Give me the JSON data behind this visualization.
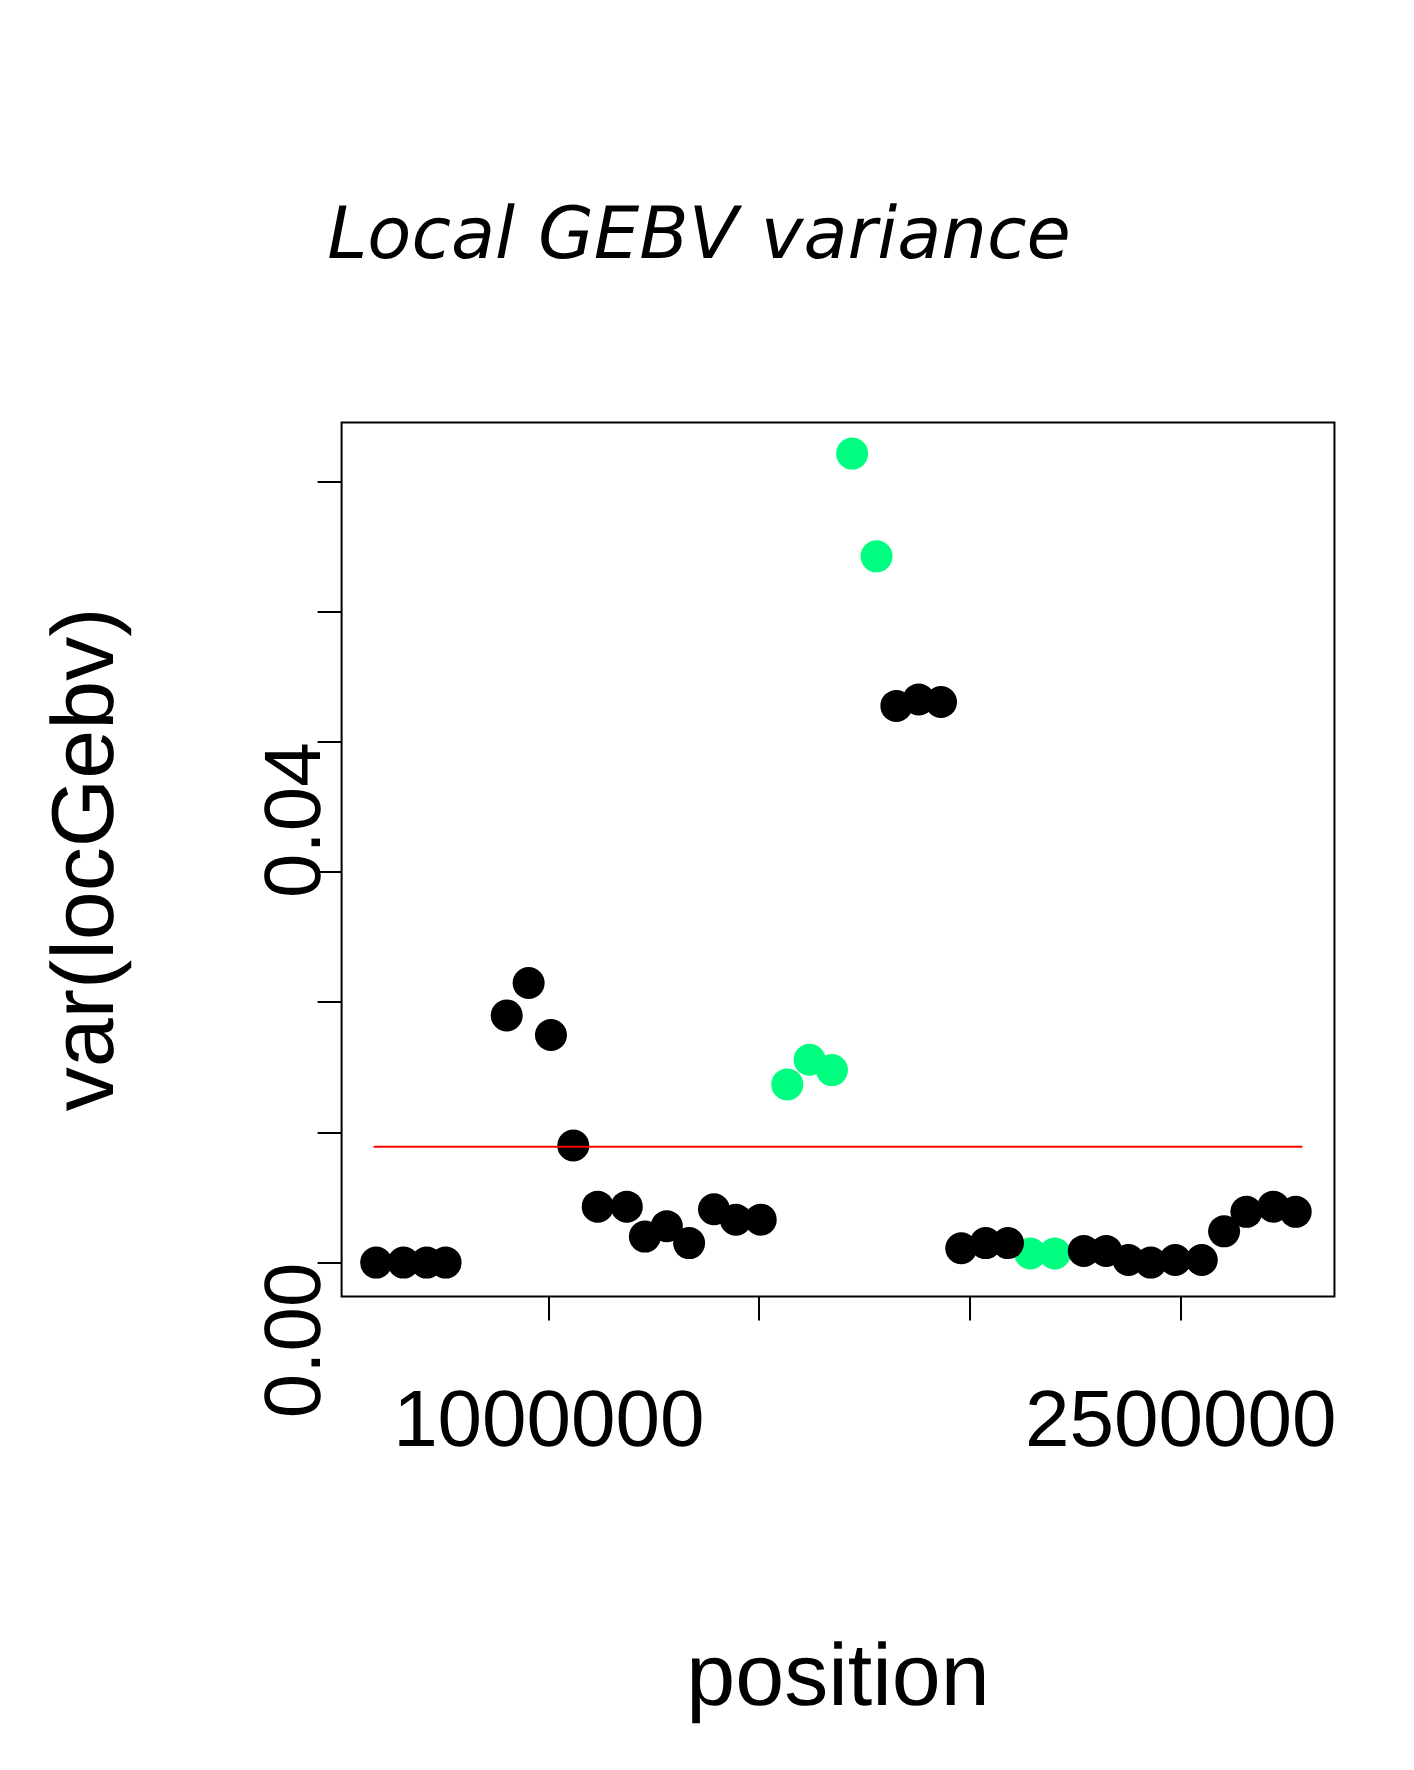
{
  "chart_data": {
    "type": "scatter",
    "title": "Local GEBV variance",
    "xlabel": "position",
    "ylabel": "var(locGebv)",
    "series": [
      {
        "color": "#000000",
        "x": [
          590000,
          655000,
          710000,
          755000,
          900000,
          952000,
          1005000,
          1058000,
          1116000,
          1185000,
          1228000,
          1280000,
          1333000,
          1392000,
          1444000,
          1503000,
          1825000,
          1878000,
          1931000,
          1979000,
          2037000,
          2090000,
          2270000,
          2323000,
          2376000,
          2429000,
          2487000,
          2550000,
          2603000,
          2656000,
          2720000,
          2773000
        ],
        "values": [
          0,
          0,
          0,
          0,
          0.019,
          0.0215,
          0.0175,
          0.009,
          0.0043,
          0.0043,
          0.002,
          0.0028,
          0.0015,
          0.0041,
          0.0033,
          0.0033,
          0.0428,
          0.0433,
          0.0431,
          0.0011,
          0.0015,
          0.0015,
          0.0009,
          0.0009,
          0.0002,
          0,
          0.0002,
          0.0002,
          0.0024,
          0.0039,
          0.0043,
          0.0039
        ]
      },
      {
        "color": "#00ff80",
        "x": [
          1566000,
          1619000,
          1672000,
          1720000,
          1778000,
          2143000,
          2201000
        ],
        "values": [
          0.0137,
          0.0156,
          0.0148,
          0.0622,
          0.0543,
          0.0007,
          0.0007
        ]
      }
    ],
    "xlim": [
      508000,
      2865000
    ],
    "ylim": [
      -0.0026,
      0.0646
    ],
    "xticks": [
      {
        "value": 1000000,
        "label": "1000000"
      },
      {
        "value": 1500000,
        "label": null
      },
      {
        "value": 2000000,
        "label": null
      },
      {
        "value": 2500000,
        "label": "2500000"
      }
    ],
    "yticks": [
      {
        "value": 0,
        "label": "0.00"
      },
      {
        "value": 0.01,
        "label": null
      },
      {
        "value": 0.02,
        "label": null
      },
      {
        "value": 0.03,
        "label": null
      },
      {
        "value": 0.04,
        "label": "0.04"
      },
      {
        "value": 0.05,
        "label": null
      },
      {
        "value": 0.06,
        "label": null
      }
    ],
    "ref_lines": [
      {
        "axis": "y",
        "value": 0.0089,
        "color": "#ff0000"
      }
    ],
    "grid": false,
    "legend": false,
    "marker": "circle"
  }
}
